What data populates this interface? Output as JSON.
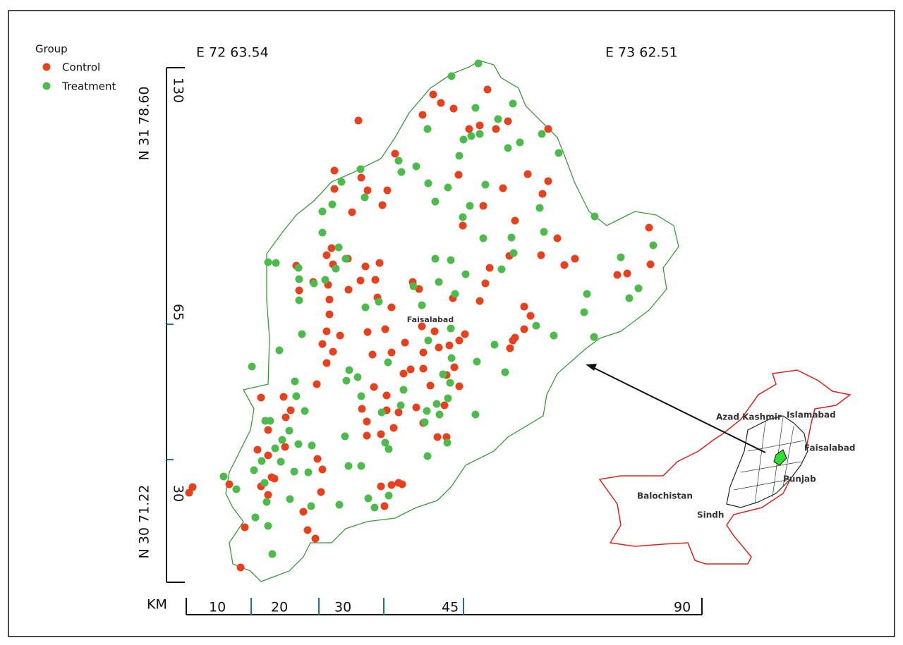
{
  "legend": {
    "title": "Group",
    "items": [
      {
        "label": "Control",
        "color": "#e8401c"
      },
      {
        "label": "Treatment",
        "color": "#4cbb4c"
      }
    ]
  },
  "top_labels": [
    "E 72 63.54",
    "E 73 62.51"
  ],
  "left_labels": [
    "N 31 78.60",
    "N 30 71.22"
  ],
  "left_scale": [
    "130",
    "65",
    "30"
  ],
  "bottom_scale": {
    "unit": "KM",
    "labels": [
      "10",
      "20",
      "30",
      "45",
      "90"
    ]
  },
  "map_label": "Faisalabad",
  "inset_labels": [
    "Azad Kashmir",
    "Islamabad",
    "Faisalabad",
    "Punjab",
    "Balochistan",
    "Sindh"
  ]
}
